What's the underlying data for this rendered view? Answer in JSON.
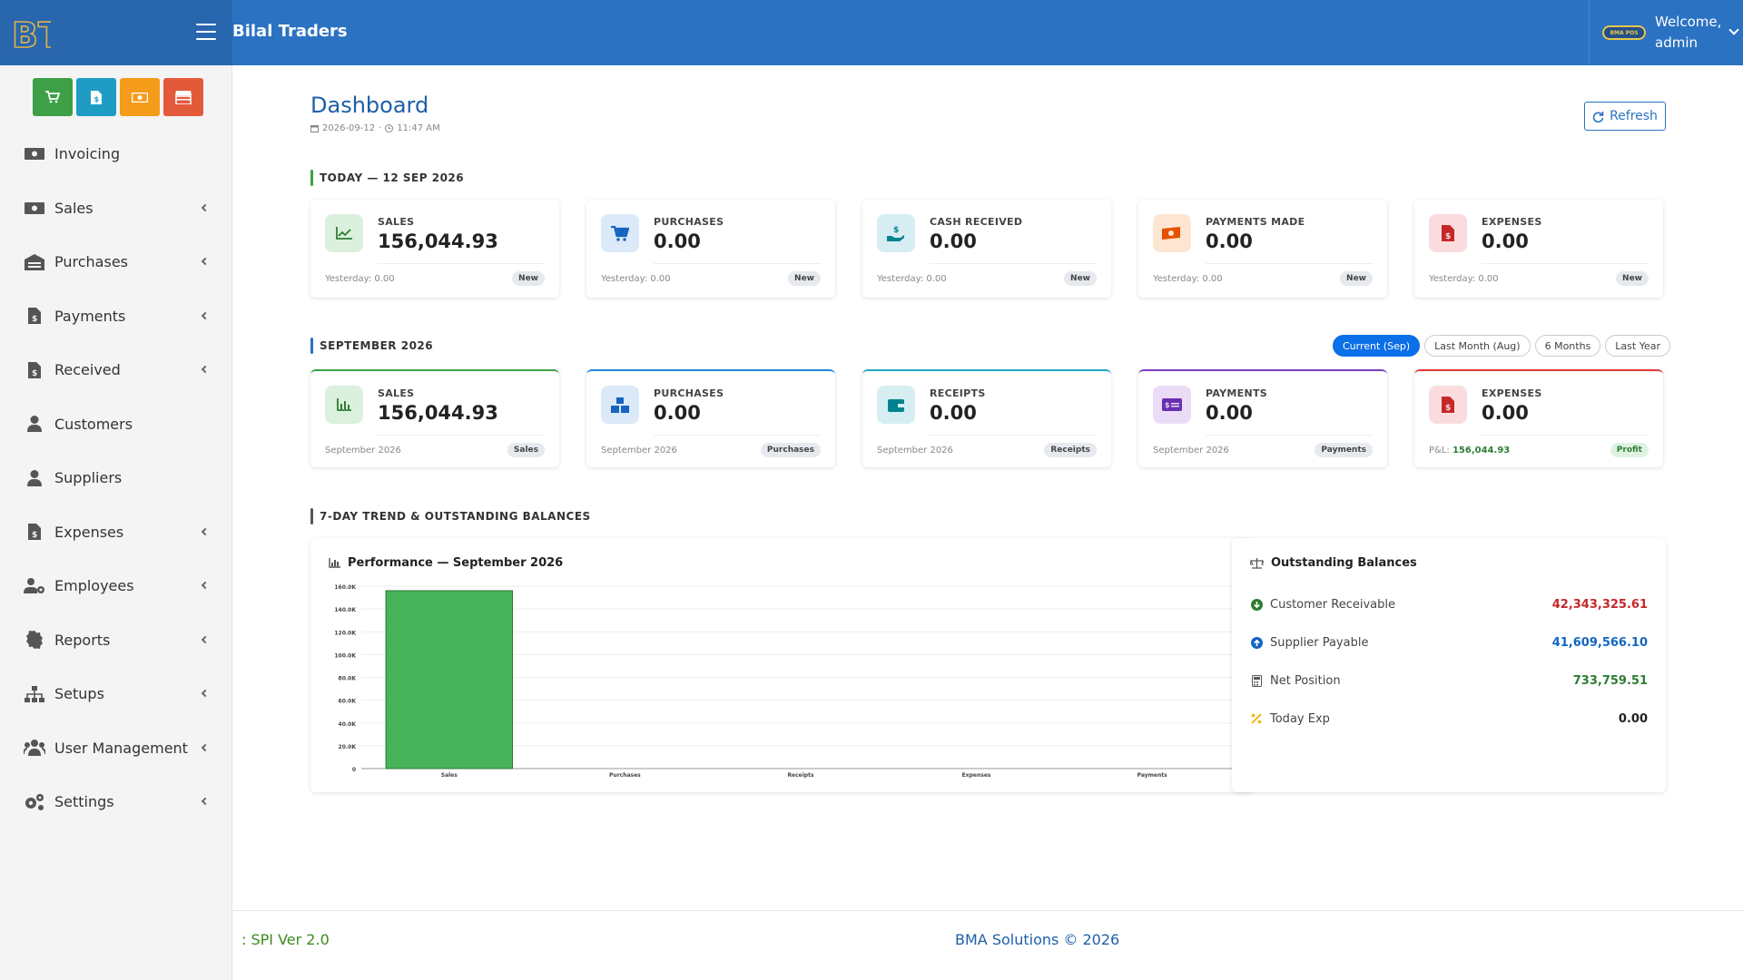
{
  "header": {
    "logo_text": "BT",
    "app_title": "Bilal Traders",
    "badge_text": "BMA POS",
    "welcome_line1": "Welcome,",
    "welcome_line2": "admin"
  },
  "sidebar": {
    "items": [
      {
        "label": "Invoicing",
        "icon": "cash-icon",
        "has_submenu": false
      },
      {
        "label": "Sales",
        "icon": "cash-icon",
        "has_submenu": true
      },
      {
        "label": "Purchases",
        "icon": "warehouse-icon",
        "has_submenu": true
      },
      {
        "label": "Payments",
        "icon": "invoice-dollar-icon",
        "has_submenu": true
      },
      {
        "label": "Received",
        "icon": "invoice-dollar-icon",
        "has_submenu": true
      },
      {
        "label": "Customers",
        "icon": "user-icon",
        "has_submenu": false
      },
      {
        "label": "Suppliers",
        "icon": "user-icon",
        "has_submenu": false
      },
      {
        "label": "Expenses",
        "icon": "invoice-dollar-icon",
        "has_submenu": true
      },
      {
        "label": "Employees",
        "icon": "users-cog-icon",
        "has_submenu": true
      },
      {
        "label": "Reports",
        "icon": "gear-badge-icon",
        "has_submenu": true
      },
      {
        "label": "Setups",
        "icon": "sitemap-icon",
        "has_submenu": true
      },
      {
        "label": "User Management",
        "icon": "users-icon",
        "has_submenu": true
      },
      {
        "label": "Settings",
        "icon": "gears-icon",
        "has_submenu": true
      }
    ]
  },
  "page": {
    "title": "Dashboard",
    "date": "2026-09-12",
    "time": "11:47 AM",
    "refresh_label": "Refresh"
  },
  "today": {
    "heading": "TODAY — 12 SEP 2026",
    "cards": [
      {
        "label": "SALES",
        "value": "156,044.93",
        "foot": "Yesterday: 0.00",
        "badge": "New",
        "icon": "chart-line-icon"
      },
      {
        "label": "PURCHASES",
        "value": "0.00",
        "foot": "Yesterday: 0.00",
        "badge": "New",
        "icon": "cart-icon"
      },
      {
        "label": "CASH RECEIVED",
        "value": "0.00",
        "foot": "Yesterday: 0.00",
        "badge": "New",
        "icon": "hand-dollar-icon"
      },
      {
        "label": "PAYMENTS MADE",
        "value": "0.00",
        "foot": "Yesterday: 0.00",
        "badge": "New",
        "icon": "money-bill-icon"
      },
      {
        "label": "EXPENSES",
        "value": "0.00",
        "foot": "Yesterday: 0.00",
        "badge": "New",
        "icon": "file-dollar-icon"
      }
    ]
  },
  "month": {
    "heading": "SEPTEMBER 2026",
    "tabs": [
      "Current (Sep)",
      "Last Month (Aug)",
      "6 Months",
      "Last Year"
    ],
    "active_tab": 0,
    "cards": [
      {
        "label": "SALES",
        "value": "156,044.93",
        "foot": "September 2026",
        "badge": "Sales",
        "icon": "bar-chart-icon"
      },
      {
        "label": "PURCHASES",
        "value": "0.00",
        "foot": "September 2026",
        "badge": "Purchases",
        "icon": "boxes-icon"
      },
      {
        "label": "RECEIPTS",
        "value": "0.00",
        "foot": "September 2026",
        "badge": "Receipts",
        "icon": "wallet-icon"
      },
      {
        "label": "PAYMENTS",
        "value": "0.00",
        "foot": "September 2026",
        "badge": "Payments",
        "icon": "money-check-icon"
      },
      {
        "label": "EXPENSES",
        "value": "0.00",
        "foot_prefix": "P&L:",
        "foot_value": "156,044.93",
        "badge": "Profit",
        "icon": "file-dollar-icon"
      }
    ]
  },
  "trend": {
    "heading": "7-DAY TREND & OUTSTANDING BALANCES",
    "chart_title": "Performance —  September 2026",
    "outstanding_title": "Outstanding Balances",
    "balances": [
      {
        "label": "Customer Receivable",
        "value": "42,343,325.61",
        "color": "#c62828",
        "icon": "arrow-circle-down-icon"
      },
      {
        "label": "Supplier Payable",
        "value": "41,609,566.10",
        "color": "#1565c0",
        "icon": "arrow-circle-up-icon"
      },
      {
        "label": "Net Position",
        "value": "733,759.51",
        "color": "#2e7d32",
        "icon": "calculator-icon"
      },
      {
        "label": "Today Exp",
        "value": "0.00",
        "color": "#222222",
        "icon": "percent-icon"
      }
    ]
  },
  "chart_data": {
    "type": "bar",
    "categories": [
      "Sales",
      "Purchases",
      "Receipts",
      "Expenses",
      "Payments"
    ],
    "values": [
      156044.93,
      0,
      0,
      0,
      0
    ],
    "ylim": [
      0,
      160000
    ],
    "yticks": [
      "0",
      "20.0K",
      "40.0K",
      "60.0K",
      "80.0K",
      "100.0K",
      "120.0K",
      "140.0K",
      "160.0K"
    ],
    "ytick_values": [
      0,
      20000,
      40000,
      60000,
      80000,
      100000,
      120000,
      140000,
      160000
    ],
    "bar_color": "#47b35a",
    "grid": true
  },
  "footer": {
    "left": ": SPI Ver 2.0",
    "center": "BMA Solutions © 2026"
  },
  "colors": {
    "navbar": "#2b72c2",
    "accent_green": "#3ea046"
  }
}
